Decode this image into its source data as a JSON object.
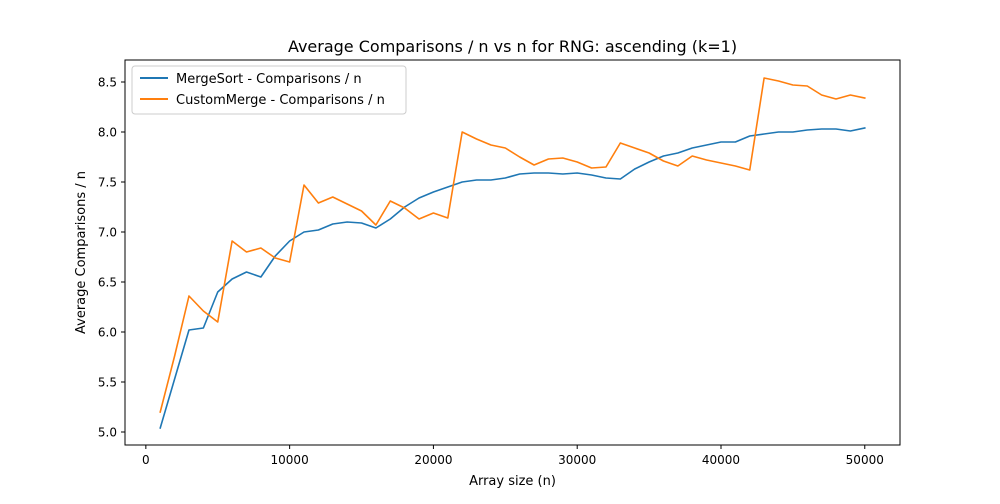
{
  "chart_data": {
    "type": "line",
    "title": "Average Comparisons / n vs n for RNG: ascending (k=1)",
    "xlabel": "Array size (n)",
    "ylabel": "Average Comparisons / n",
    "xlim": [
      -1450,
      52450
    ],
    "ylim": [
      4.87,
      8.72
    ],
    "xticks": [
      0,
      10000,
      20000,
      30000,
      40000,
      50000
    ],
    "xtick_labels": [
      "0",
      "10000",
      "20000",
      "30000",
      "40000",
      "50000"
    ],
    "yticks": [
      5.0,
      5.5,
      6.0,
      6.5,
      7.0,
      7.5,
      8.0,
      8.5
    ],
    "ytick_labels": [
      "5.0",
      "5.5",
      "6.0",
      "6.5",
      "7.0",
      "7.5",
      "8.0",
      "8.5"
    ],
    "grid": false,
    "legend_position": "upper-left",
    "x": [
      1000,
      2000,
      3000,
      4000,
      5000,
      6000,
      7000,
      8000,
      9000,
      10000,
      11000,
      12000,
      13000,
      14000,
      15000,
      16000,
      17000,
      18000,
      19000,
      20000,
      21000,
      22000,
      23000,
      24000,
      25000,
      26000,
      27000,
      28000,
      29000,
      30000,
      31000,
      32000,
      33000,
      34000,
      35000,
      36000,
      37000,
      38000,
      39000,
      40000,
      41000,
      42000,
      43000,
      44000,
      45000,
      46000,
      47000,
      48000,
      49000,
      50000
    ],
    "series": [
      {
        "name": "MergeSort - Comparisons / n",
        "color": "#1f77b4",
        "values": [
          5.04,
          5.53,
          6.02,
          6.04,
          6.4,
          6.53,
          6.6,
          6.55,
          6.76,
          6.91,
          7.0,
          7.02,
          7.08,
          7.1,
          7.09,
          7.04,
          7.13,
          7.25,
          7.34,
          7.4,
          7.45,
          7.5,
          7.52,
          7.52,
          7.54,
          7.58,
          7.59,
          7.59,
          7.58,
          7.59,
          7.57,
          7.54,
          7.53,
          7.63,
          7.7,
          7.76,
          7.79,
          7.84,
          7.87,
          7.9,
          7.9,
          7.96,
          7.98,
          8.0,
          8.0,
          8.02,
          8.03,
          8.03,
          8.01,
          8.04
        ]
      },
      {
        "name": "CustomMerge - Comparisons / n",
        "color": "#ff7f0e",
        "values": [
          5.2,
          5.76,
          6.36,
          6.21,
          6.1,
          6.91,
          6.8,
          6.84,
          6.74,
          6.7,
          7.47,
          7.29,
          7.35,
          7.28,
          7.21,
          7.07,
          7.31,
          7.24,
          7.13,
          7.19,
          7.14,
          8.0,
          7.93,
          7.87,
          7.84,
          7.75,
          7.67,
          7.73,
          7.74,
          7.7,
          7.64,
          7.65,
          7.89,
          7.84,
          7.79,
          7.71,
          7.66,
          7.76,
          7.72,
          7.69,
          7.66,
          7.62,
          8.54,
          8.51,
          8.47,
          8.46,
          8.37,
          8.33,
          8.37,
          8.34
        ]
      }
    ]
  }
}
